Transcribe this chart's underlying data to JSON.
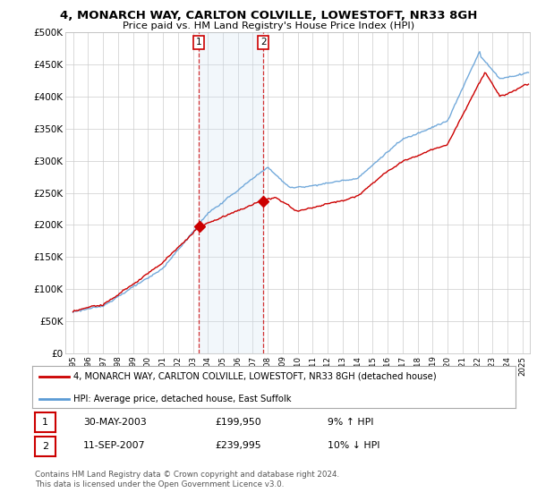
{
  "title1": "4, MONARCH WAY, CARLTON COLVILLE, LOWESTOFT, NR33 8GH",
  "title2": "Price paid vs. HM Land Registry's House Price Index (HPI)",
  "ylabel_ticks": [
    "£0",
    "£50K",
    "£100K",
    "£150K",
    "£200K",
    "£250K",
    "£300K",
    "£350K",
    "£400K",
    "£450K",
    "£500K"
  ],
  "ytick_values": [
    0,
    50000,
    100000,
    150000,
    200000,
    250000,
    300000,
    350000,
    400000,
    450000,
    500000
  ],
  "ylim": [
    0,
    500000
  ],
  "xlim_start": 1994.5,
  "xlim_end": 2025.5,
  "hpi_color": "#5b9bd5",
  "hpi_fill_color": "#cfe2f3",
  "property_color": "#cc0000",
  "dashed_color": "#cc0000",
  "marker1_year": 2003.41,
  "marker1_price": 199950,
  "marker2_year": 2007.71,
  "marker2_price": 239995,
  "legend_property": "4, MONARCH WAY, CARLTON COLVILLE, LOWESTOFT, NR33 8GH (detached house)",
  "legend_hpi": "HPI: Average price, detached house, East Suffolk",
  "table_row1_num": "1",
  "table_row1_date": "30-MAY-2003",
  "table_row1_price": "£199,950",
  "table_row1_hpi": "9% ↑ HPI",
  "table_row2_num": "2",
  "table_row2_date": "11-SEP-2007",
  "table_row2_price": "£239,995",
  "table_row2_hpi": "10% ↓ HPI",
  "footnote": "Contains HM Land Registry data © Crown copyright and database right 2024.\nThis data is licensed under the Open Government Licence v3.0.",
  "background_color": "#ffffff",
  "plot_bg_color": "#ffffff",
  "grid_color": "#cccccc",
  "shade_alpha": 0.25
}
